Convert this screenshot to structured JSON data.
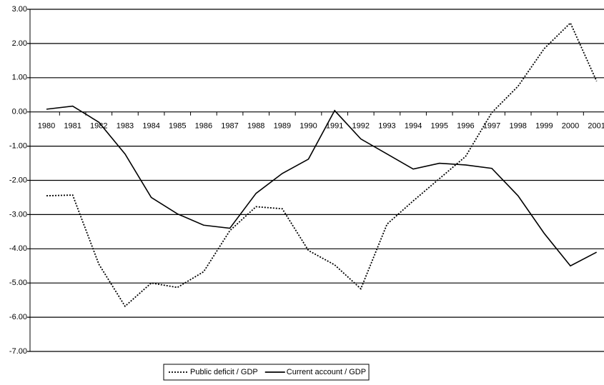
{
  "chart_data": {
    "type": "line",
    "categories": [
      "1980",
      "1981",
      "1982",
      "1983",
      "1984",
      "1985",
      "1986",
      "1987",
      "1988",
      "1989",
      "1990",
      "1991",
      "1992",
      "1993",
      "1994",
      "1995",
      "1996",
      "1997",
      "1998",
      "1999",
      "2000",
      "2001"
    ],
    "series": [
      {
        "name": "Public deficit / GDP",
        "color": "#000000",
        "dash": true,
        "values": [
          -2.45,
          -2.43,
          -4.45,
          -5.68,
          -5.0,
          -5.13,
          -4.67,
          -3.47,
          -2.77,
          -2.83,
          -4.05,
          -4.47,
          -5.17,
          -3.28,
          -2.6,
          -1.95,
          -1.3,
          -0.02,
          0.75,
          1.85,
          2.6,
          0.9
        ]
      },
      {
        "name": "Current account / GDP",
        "color": "#000000",
        "dash": false,
        "values": [
          0.08,
          0.17,
          -0.3,
          -1.23,
          -2.5,
          -2.98,
          -3.31,
          -3.4,
          -2.38,
          -1.8,
          -1.38,
          0.04,
          -0.79,
          -1.23,
          -1.67,
          -1.5,
          -1.55,
          -1.65,
          -2.45,
          -3.55,
          -4.5,
          -4.1
        ]
      }
    ],
    "ylim": [
      -7,
      3
    ],
    "yticks": [
      {
        "value": 3,
        "label": "3.00"
      },
      {
        "value": 2,
        "label": "2.00"
      },
      {
        "value": 1,
        "label": "1.00"
      },
      {
        "value": 0,
        "label": "0.00"
      },
      {
        "value": -1,
        "label": "-1.00"
      },
      {
        "value": -2,
        "label": "-2.00"
      },
      {
        "value": -3,
        "label": "-3.00"
      },
      {
        "value": -4,
        "label": "-4.00"
      },
      {
        "value": -5,
        "label": "-5.00"
      },
      {
        "value": -6,
        "label": "-6.00"
      },
      {
        "value": -7,
        "label": "-7.00"
      }
    ],
    "grid": true,
    "legend": "bottom"
  }
}
